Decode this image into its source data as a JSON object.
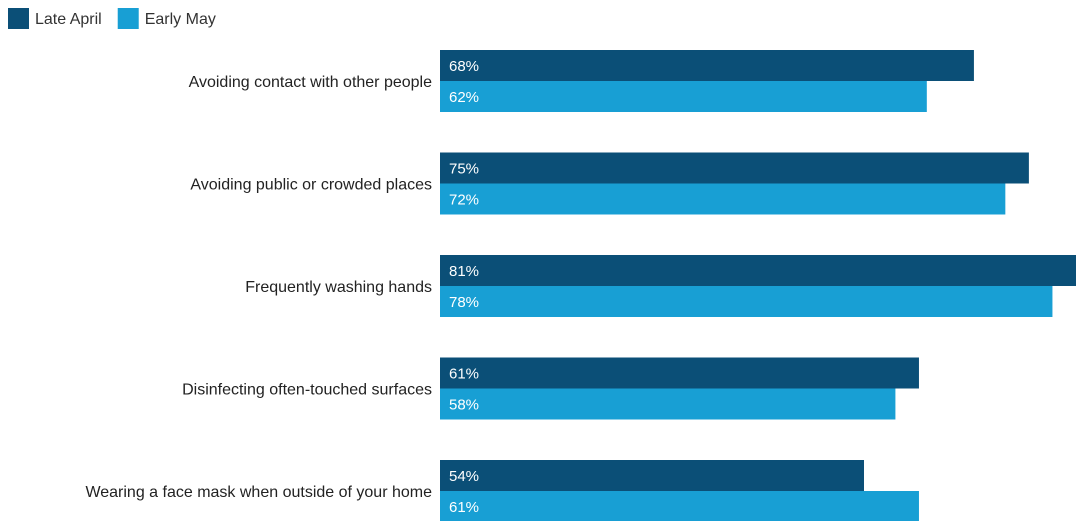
{
  "chart_data": {
    "type": "bar",
    "orientation": "horizontal",
    "categories": [
      "Avoiding contact with other people",
      "Avoiding public or crowded places",
      "Frequently washing hands",
      "Disinfecting often-touched surfaces",
      "Wearing a face mask when outside of your home"
    ],
    "series": [
      {
        "name": "Late April",
        "color": "#0b4f77",
        "values": [
          68,
          75,
          81,
          61,
          54
        ],
        "labels": [
          "68%",
          "75%",
          "81%",
          "61%",
          "54%"
        ]
      },
      {
        "name": "Early May",
        "color": "#189fd4",
        "values": [
          62,
          72,
          78,
          58,
          61
        ],
        "labels": [
          "62%",
          "72%",
          "78%",
          "58%",
          "61%"
        ]
      }
    ],
    "xlim": [
      0,
      81
    ],
    "legend": "top-left",
    "grid": false,
    "title": "",
    "xlabel": "",
    "ylabel": ""
  }
}
